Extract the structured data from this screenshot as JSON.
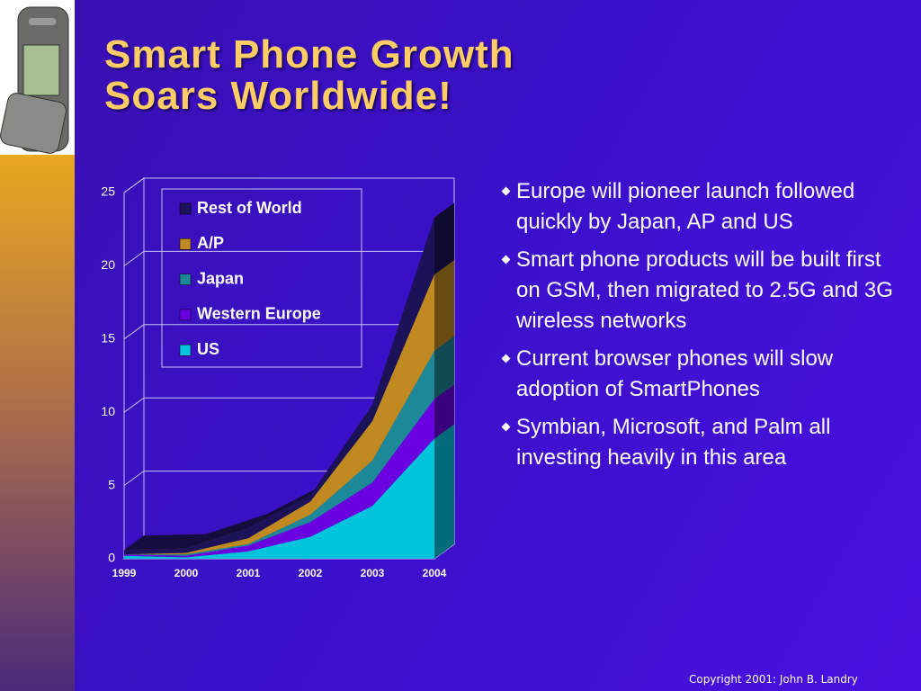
{
  "chart_data": {
    "type": "stacked_area",
    "title": "Smart Phone Growth Soars Worldwide!",
    "categories": [
      "1999",
      "2000",
      "2001",
      "2002",
      "2003",
      "2004"
    ],
    "series": [
      {
        "name": "US",
        "color": "#00c4dc",
        "values": [
          0.2,
          0.1,
          0.5,
          1.5,
          3.6,
          8.2
        ]
      },
      {
        "name": "Western Europe",
        "color": "#6a00e0",
        "values": [
          0.1,
          0.1,
          0.4,
          1.0,
          1.6,
          2.7
        ]
      },
      {
        "name": "Japan",
        "color": "#1d8898",
        "values": [
          0,
          0.1,
          0.1,
          0.5,
          1.5,
          3.3
        ]
      },
      {
        "name": "A/P",
        "color": "#c08a20",
        "values": [
          0,
          0.1,
          0.4,
          0.9,
          2.7,
          5.2
        ]
      },
      {
        "name": "Rest of World",
        "color": "#1c1258",
        "values": [
          0.3,
          0.3,
          0.7,
          0.4,
          1.1,
          3.9
        ]
      }
    ],
    "ylim": [
      0,
      25
    ],
    "yticks": [
      0,
      5,
      10,
      15,
      20,
      25
    ],
    "grid": true
  },
  "bullets": [
    "Europe will pioneer launch followed quickly by Japan, AP and US",
    "Smart phone products will be built first on GSM, then migrated to 2.5G and 3G wireless networks",
    "Current browser phones will slow adoption of SmartPhones",
    "Symbian, Microsoft, and Palm all investing heavily in this area"
  ],
  "copyright": "Copyright 2001: John B. Landry"
}
